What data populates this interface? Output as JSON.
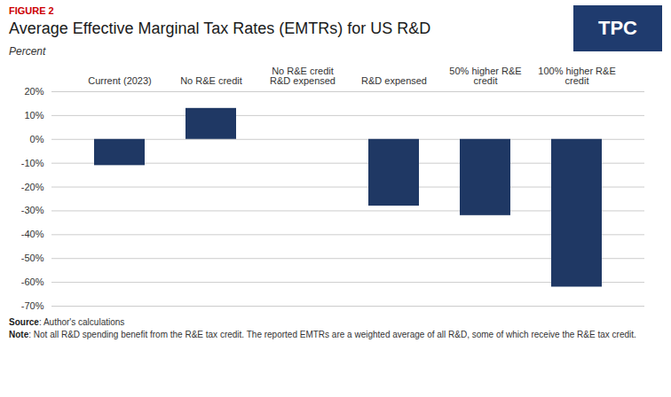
{
  "chart_data": {
    "type": "bar",
    "figure_label": "FIGURE 2",
    "title": "Average Effective Marginal Tax Rates (EMTRs) for US R&D",
    "y_label": "Percent",
    "categories": [
      "Current (2023)",
      "No R&E credit",
      "No R&E credit\nR&D expensed",
      "R&D expensed",
      "50% higher R&E\ncredit",
      "100% higher R&E\ncredit"
    ],
    "values": [
      -11,
      13,
      0,
      -28,
      -32,
      -62
    ],
    "color": "#1F3864",
    "ylim": [
      -70,
      20
    ],
    "yticks": [
      {
        "value": 20,
        "label": "20%"
      },
      {
        "value": 10,
        "label": "10%"
      },
      {
        "value": 0,
        "label": "0%"
      },
      {
        "value": -10,
        "label": "-10%"
      },
      {
        "value": -20,
        "label": "-20%"
      },
      {
        "value": -30,
        "label": "-30%"
      },
      {
        "value": -40,
        "label": "-40%"
      },
      {
        "value": -50,
        "label": "-50%"
      },
      {
        "value": -60,
        "label": "-60%"
      },
      {
        "value": -70,
        "label": "-70%"
      }
    ],
    "grid": true,
    "source": "Source: Author's calculations",
    "note": "Note: Not all R&D spending benefit from the R&E tax credit. The reported EMTRs are a weighted average of all R&D, some of which receive the R&E tax credit.",
    "annotations": [
      "TPC"
    ]
  }
}
